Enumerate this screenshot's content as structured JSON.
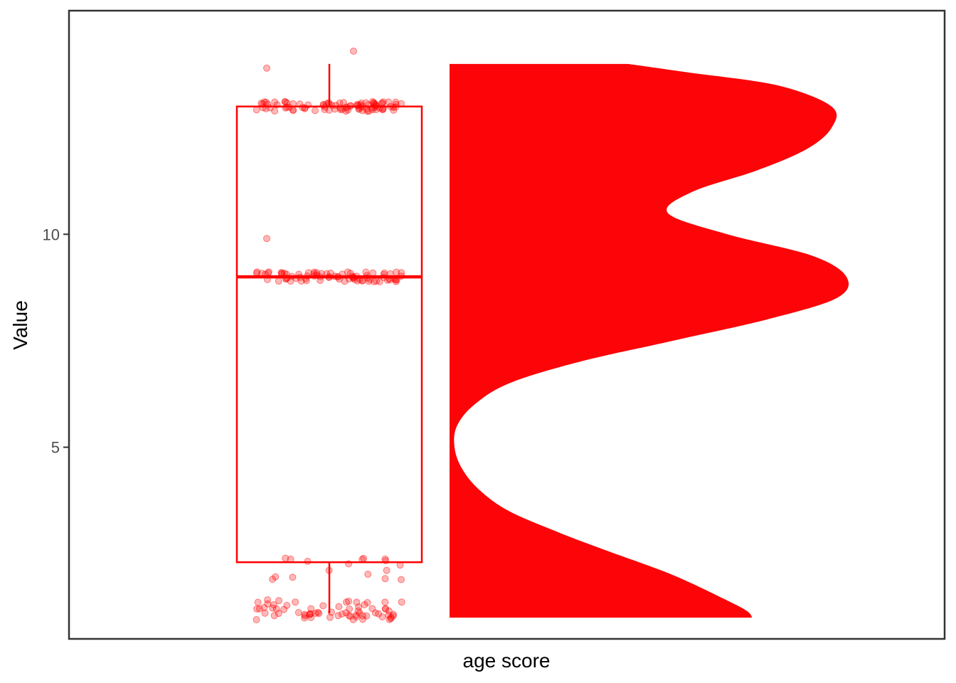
{
  "chart_data": {
    "type": "raincloud",
    "xlabel": "age score",
    "ylabel": "Value",
    "ylim": [
      0.5,
      15.25
    ],
    "yticks": [
      5,
      10
    ],
    "grid": false,
    "color": "#ff0000",
    "box": {
      "q1": 2.3,
      "median": 9.0,
      "q3": 13.0,
      "whisker_low": 1.1,
      "whisker_high": 14.0
    },
    "density": {
      "ymin": 1.0,
      "ymax": 14.0,
      "profile": [
        [
          1.0,
          0.61
        ],
        [
          1.15,
          0.6
        ],
        [
          1.4,
          0.56
        ],
        [
          2.0,
          0.45
        ],
        [
          2.6,
          0.31
        ],
        [
          3.0,
          0.22
        ],
        [
          3.5,
          0.12
        ],
        [
          4.0,
          0.06
        ],
        [
          4.5,
          0.025
        ],
        [
          5.0,
          0.01
        ],
        [
          5.5,
          0.015
        ],
        [
          6.0,
          0.05
        ],
        [
          6.5,
          0.12
        ],
        [
          7.0,
          0.26
        ],
        [
          7.5,
          0.45
        ],
        [
          8.0,
          0.64
        ],
        [
          8.5,
          0.78
        ],
        [
          9.0,
          0.8
        ],
        [
          9.5,
          0.73
        ],
        [
          10.0,
          0.56
        ],
        [
          10.5,
          0.44
        ],
        [
          11.0,
          0.49
        ],
        [
          11.5,
          0.62
        ],
        [
          12.0,
          0.72
        ],
        [
          12.5,
          0.77
        ],
        [
          13.0,
          0.77
        ],
        [
          13.5,
          0.66
        ],
        [
          13.8,
          0.48
        ],
        [
          14.0,
          0.36
        ]
      ]
    },
    "points": [
      {
        "y": 1.05,
        "n": 40
      },
      {
        "y": 1.3,
        "n": 28
      },
      {
        "y": 2.0,
        "n": 8
      },
      {
        "y": 2.35,
        "n": 9
      },
      {
        "y": 9.0,
        "n": 80
      },
      {
        "y": 9.9,
        "n": 1
      },
      {
        "y": 13.0,
        "n": 90
      },
      {
        "y": 13.9,
        "n": 1
      },
      {
        "y": 14.3,
        "n": 1
      }
    ]
  }
}
